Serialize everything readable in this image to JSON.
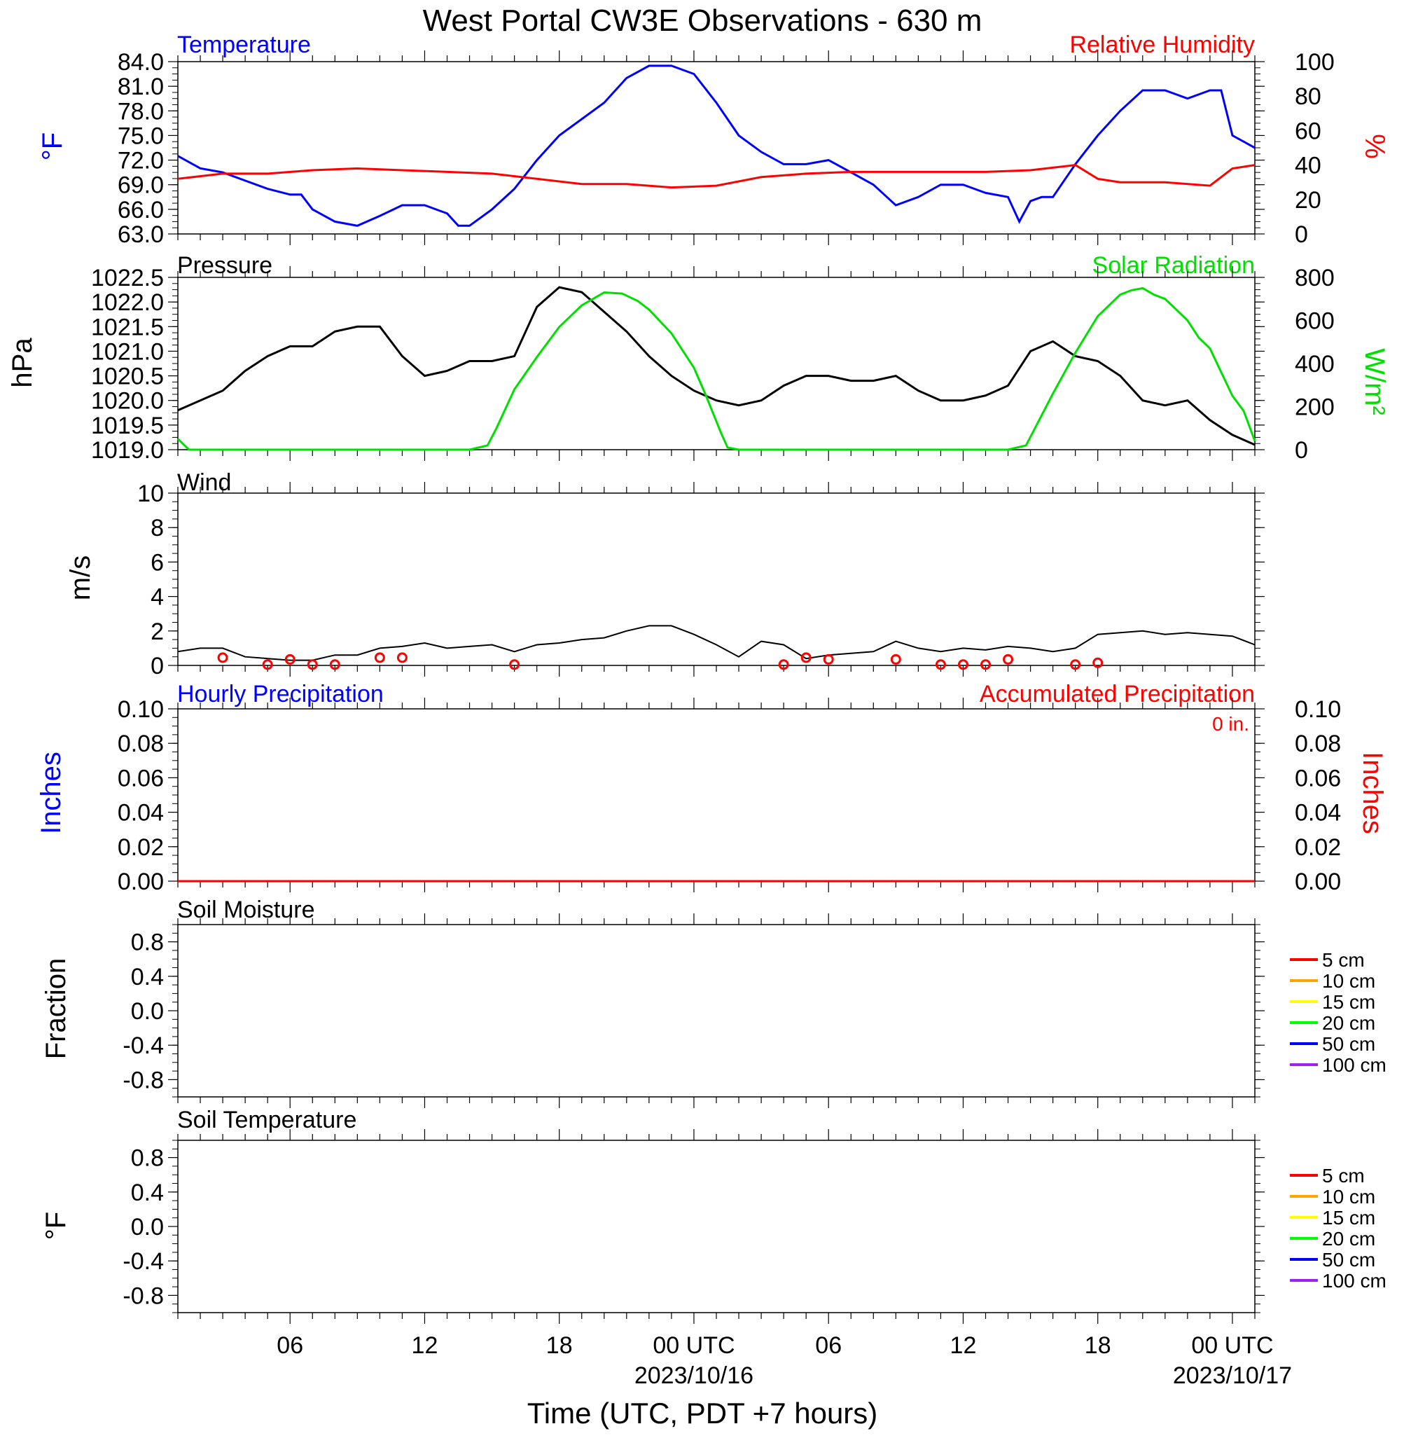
{
  "figure": {
    "title": "West Portal CW3E Observations - 630 m",
    "xlabel": "Time (UTC, PDT +7 hours)"
  },
  "x_axis": {
    "range_hours": [
      0,
      48
    ],
    "major_ticks": [
      {
        "hour": 5,
        "label": "06",
        "date": ""
      },
      {
        "hour": 11,
        "label": "12",
        "date": ""
      },
      {
        "hour": 17,
        "label": "18",
        "date": ""
      },
      {
        "hour": 23,
        "label": "00 UTC",
        "date": "2023/10/16"
      },
      {
        "hour": 29,
        "label": "06",
        "date": ""
      },
      {
        "hour": 35,
        "label": "12",
        "date": ""
      },
      {
        "hour": 41,
        "label": "18",
        "date": ""
      },
      {
        "hour": 47,
        "label": "00 UTC",
        "date": "2023/10/17"
      }
    ]
  },
  "colors": {
    "temperature": "#0000ff",
    "humidity": "#ff0000",
    "pressure": "#000000",
    "solar": "#00ff00",
    "wind": "#000000",
    "wind_barb": "#ff0000",
    "hourly_precip": "#0000ff",
    "accum_precip": "#ff0000"
  },
  "panels": {
    "temp_rh": {
      "label_left": "Temperature",
      "label_right": "Relative Humidity",
      "ylabel_left": "°F",
      "ylabel_right": "%",
      "left_ticks": [
        "63.0",
        "66.0",
        "69.0",
        "72.0",
        "75.0",
        "78.0",
        "81.0",
        "84.0"
      ],
      "right_ticks": [
        "0",
        "20",
        "40",
        "60",
        "80",
        "100"
      ]
    },
    "pressure_solar": {
      "label_left": "Pressure",
      "label_right": "Solar Radiation",
      "ylabel_left": "hPa",
      "ylabel_right": "W/m²",
      "left_ticks": [
        "1019.0",
        "1019.5",
        "1020.0",
        "1020.5",
        "1021.0",
        "1021.5",
        "1022.0",
        "1022.5"
      ],
      "right_ticks": [
        "0",
        "200",
        "400",
        "600",
        "800"
      ]
    },
    "wind": {
      "label_left": "Wind",
      "ylabel_left": "m/s",
      "left_ticks": [
        "0",
        "2",
        "4",
        "6",
        "8",
        "10"
      ]
    },
    "precip": {
      "label_left": "Hourly Precipitation",
      "label_right": "Accumulated Precipitation",
      "total_text": "0 in.",
      "ylabel_left": "Inches",
      "ylabel_right": "Inches",
      "left_ticks": [
        "0.00",
        "0.02",
        "0.04",
        "0.06",
        "0.08",
        "0.10"
      ],
      "right_ticks": [
        "0.00",
        "0.02",
        "0.04",
        "0.06",
        "0.08",
        "0.10"
      ]
    },
    "soil_moisture": {
      "label_left": "Soil Moisture",
      "ylabel_left": "Fraction",
      "left_ticks": [
        "-0.8",
        "-0.4",
        "0.0",
        "0.4",
        "0.8"
      ]
    },
    "soil_temp": {
      "label_left": "Soil Temperature",
      "ylabel_left": "°F",
      "left_ticks": [
        "-0.8",
        "-0.4",
        "0.0",
        "0.4",
        "0.8"
      ]
    }
  },
  "soil_legend": [
    {
      "label": "5 cm",
      "color": "#ff0000"
    },
    {
      "label": "10 cm",
      "color": "#ffa500"
    },
    {
      "label": "15 cm",
      "color": "#ffff00"
    },
    {
      "label": "20 cm",
      "color": "#00ff00"
    },
    {
      "label": "50 cm",
      "color": "#0000ff"
    },
    {
      "label": "100 cm",
      "color": "#a020f0"
    }
  ],
  "chart_data": [
    {
      "type": "line",
      "panel": "temp_rh",
      "x_unit": "hours since 2023-10-15 01 UTC",
      "series": [
        {
          "name": "Temperature",
          "axis": "left",
          "unit": "°F",
          "ylim": [
            63,
            84
          ],
          "x": [
            0,
            1,
            2,
            3,
            4,
            5,
            5.5,
            6,
            7,
            8,
            9,
            10,
            11,
            12,
            12.5,
            13,
            14,
            15,
            16,
            17,
            18,
            19,
            20,
            21,
            22,
            23,
            24,
            25,
            26,
            27,
            28,
            29,
            30,
            31,
            32,
            33,
            34,
            35,
            36,
            37,
            37.5,
            38,
            38.5,
            39,
            40,
            41,
            42,
            43,
            44,
            45,
            46,
            46.5,
            47,
            48
          ],
          "y": [
            72.5,
            71.0,
            70.5,
            69.5,
            68.5,
            67.8,
            67.8,
            66.0,
            64.5,
            64.0,
            65.2,
            66.5,
            66.5,
            65.5,
            64.0,
            64.0,
            66.0,
            68.5,
            72.0,
            75.0,
            77.0,
            79.0,
            82.0,
            83.5,
            83.5,
            82.5,
            79.0,
            75.0,
            73.0,
            71.5,
            71.5,
            72.0,
            70.5,
            69.0,
            66.5,
            67.5,
            69.0,
            69.0,
            68.0,
            67.5,
            64.5,
            67.0,
            67.5,
            67.5,
            71.5,
            75.0,
            78.0,
            80.5,
            80.5,
            79.5,
            80.5,
            80.5,
            75.0,
            73.5
          ]
        },
        {
          "name": "Relative Humidity",
          "axis": "right",
          "unit": "%",
          "ylim": [
            0,
            100
          ],
          "x": [
            0,
            2,
            4,
            6,
            8,
            10,
            12,
            14,
            16,
            18,
            20,
            22,
            24,
            26,
            28,
            30,
            32,
            34,
            36,
            38,
            40,
            41,
            42,
            44,
            46,
            47,
            48
          ],
          "y": [
            32,
            35,
            35,
            37,
            38,
            37,
            36,
            35,
            32,
            29,
            29,
            27,
            28,
            33,
            35,
            36,
            36,
            36,
            36,
            37,
            40,
            32,
            30,
            30,
            28,
            38,
            40
          ]
        }
      ]
    },
    {
      "type": "line",
      "panel": "pressure_solar",
      "x_unit": "hours since 2023-10-15 01 UTC",
      "series": [
        {
          "name": "Pressure",
          "axis": "left",
          "unit": "hPa",
          "ylim": [
            1019.0,
            1022.5
          ],
          "x": [
            0,
            1,
            2,
            3,
            4,
            5,
            6,
            7,
            8,
            9,
            10,
            11,
            12,
            13,
            14,
            15,
            16,
            17,
            18,
            19,
            20,
            21,
            22,
            23,
            24,
            25,
            26,
            27,
            28,
            29,
            30,
            31,
            32,
            33,
            34,
            35,
            36,
            37,
            38,
            39,
            40,
            41,
            42,
            43,
            44,
            45,
            46,
            47,
            48
          ],
          "y": [
            1019.8,
            1020.0,
            1020.2,
            1020.6,
            1020.9,
            1021.1,
            1021.1,
            1021.4,
            1021.5,
            1021.5,
            1020.9,
            1020.5,
            1020.6,
            1020.8,
            1020.8,
            1020.9,
            1021.9,
            1022.3,
            1022.2,
            1021.8,
            1021.4,
            1020.9,
            1020.5,
            1020.2,
            1020.0,
            1019.9,
            1020.0,
            1020.3,
            1020.5,
            1020.5,
            1020.4,
            1020.4,
            1020.5,
            1020.2,
            1020.0,
            1020.0,
            1020.1,
            1020.3,
            1021.0,
            1021.2,
            1020.9,
            1020.8,
            1020.5,
            1020.0,
            1019.9,
            1020.0,
            1019.6,
            1019.3,
            1019.1
          ]
        },
        {
          "name": "Solar Radiation",
          "axis": "right",
          "unit": "W/m²",
          "ylim": [
            0,
            800
          ],
          "x": [
            0,
            0.5,
            13,
            13.8,
            14.2,
            15,
            16,
            17,
            18,
            19,
            19.8,
            20.5,
            21,
            22,
            23,
            23.5,
            24.2,
            24.5,
            25,
            37,
            37.8,
            38.2,
            39,
            40,
            41,
            42,
            42.5,
            43,
            43.5,
            44,
            44.5,
            45,
            45.5,
            46,
            46.5,
            47,
            47.5,
            48
          ],
          "y": [
            50,
            0,
            0,
            20,
            100,
            280,
            430,
            570,
            670,
            730,
            725,
            690,
            650,
            540,
            380,
            260,
            80,
            10,
            0,
            0,
            20,
            100,
            260,
            450,
            620,
            720,
            740,
            750,
            720,
            700,
            650,
            600,
            520,
            470,
            360,
            250,
            180,
            40
          ]
        }
      ]
    },
    {
      "type": "line",
      "panel": "wind",
      "x_unit": "hours since 2023-10-15 01 UTC",
      "series": [
        {
          "name": "Wind",
          "unit": "m/s",
          "ylim": [
            0,
            10
          ],
          "x": [
            0,
            1,
            2,
            3,
            4,
            5,
            6,
            7,
            8,
            9,
            10,
            11,
            12,
            13,
            14,
            15,
            16,
            17,
            18,
            19,
            20,
            21,
            22,
            23,
            24,
            25,
            26,
            27,
            28,
            29,
            30,
            31,
            32,
            33,
            34,
            35,
            36,
            37,
            38,
            39,
            40,
            41,
            42,
            43,
            44,
            45,
            46,
            47,
            48
          ],
          "y": [
            0.8,
            1.0,
            1.0,
            0.5,
            0.4,
            0.3,
            0.3,
            0.6,
            0.6,
            1.0,
            1.1,
            1.3,
            1.0,
            1.1,
            1.2,
            0.8,
            1.2,
            1.3,
            1.5,
            1.6,
            2.0,
            2.3,
            2.3,
            1.8,
            1.2,
            0.5,
            1.4,
            1.2,
            0.4,
            0.6,
            0.7,
            0.8,
            1.4,
            1.0,
            0.8,
            1.0,
            0.9,
            1.1,
            1.0,
            0.8,
            1.0,
            1.8,
            1.9,
            2.0,
            1.8,
            1.9,
            1.8,
            1.7,
            1.2
          ]
        },
        {
          "name": "barbs",
          "x": [
            2,
            4,
            5,
            6,
            7,
            9,
            10,
            15,
            27,
            28,
            29,
            32,
            34,
            35,
            36,
            37,
            40,
            41
          ],
          "y": [
            0.45,
            0.05,
            0.35,
            0.05,
            0.05,
            0.45,
            0.45,
            0.05,
            0.05,
            0.45,
            0.35,
            0.35,
            0.05,
            0.05,
            0.05,
            0.35,
            0.05,
            0.15
          ]
        }
      ]
    },
    {
      "type": "line",
      "panel": "precip",
      "x": [
        0,
        48
      ],
      "series": [
        {
          "name": "Hourly Precipitation",
          "y": [
            0,
            0
          ],
          "ylim": [
            0,
            0.1
          ]
        },
        {
          "name": "Accumulated Precipitation",
          "y": [
            0,
            0
          ],
          "ylim": [
            0,
            0.1
          ]
        }
      ]
    }
  ]
}
